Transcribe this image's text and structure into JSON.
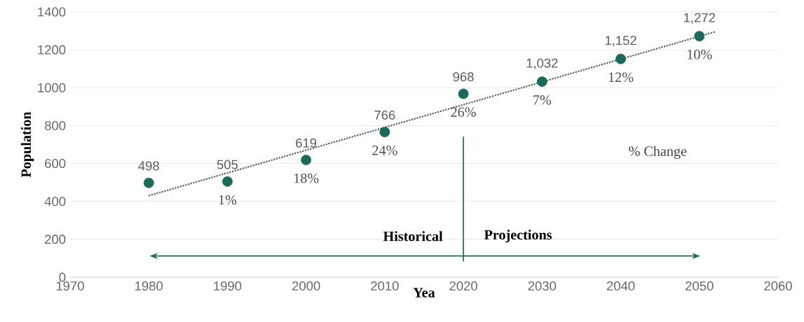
{
  "chart_data": {
    "type": "scatter",
    "xlabel": "Yea",
    "ylabel": "Population",
    "xlim": [
      1970,
      2060
    ],
    "ylim": [
      0,
      1400
    ],
    "xticks": [
      1970,
      1980,
      1990,
      2000,
      2010,
      2020,
      2030,
      2040,
      2050,
      2060
    ],
    "yticks": [
      0,
      200,
      400,
      600,
      800,
      1000,
      1200,
      1400
    ],
    "grid": "y",
    "series": [
      {
        "color": "#1a6b5a",
        "marker": "circle",
        "x": [
          1980,
          1990,
          2000,
          2010,
          2020,
          2030,
          2040,
          2050
        ],
        "values": [
          498,
          505,
          619,
          766,
          968,
          1032,
          1152,
          1272
        ],
        "value_labels": [
          "498",
          "505",
          "619",
          "766",
          "968",
          "1,032",
          "1,152",
          "1,272"
        ]
      },
      {
        "type": "line",
        "color": "#595959",
        "marker": "none",
        "line_style": "dotted",
        "x": [
          1980,
          2052
        ],
        "values": [
          430,
          1295
        ]
      }
    ],
    "ref_lines": [
      {
        "axis": "x",
        "value": 2020,
        "color": "#1a6b5a"
      }
    ],
    "annotations": [
      {
        "text": "1%",
        "x": 1990,
        "y": 505
      },
      {
        "text": "18%",
        "x": 2000,
        "y": 619
      },
      {
        "text": "24%",
        "x": 2010,
        "y": 766
      },
      {
        "text": "26%",
        "x": 2020,
        "y": 968
      },
      {
        "text": "7%",
        "x": 2030,
        "y": 1032
      },
      {
        "text": "12%",
        "x": 2040,
        "y": 1152
      },
      {
        "text": "10%",
        "x": 2050,
        "y": 1272
      },
      "Historical",
      "Projections",
      "% Change"
    ]
  }
}
